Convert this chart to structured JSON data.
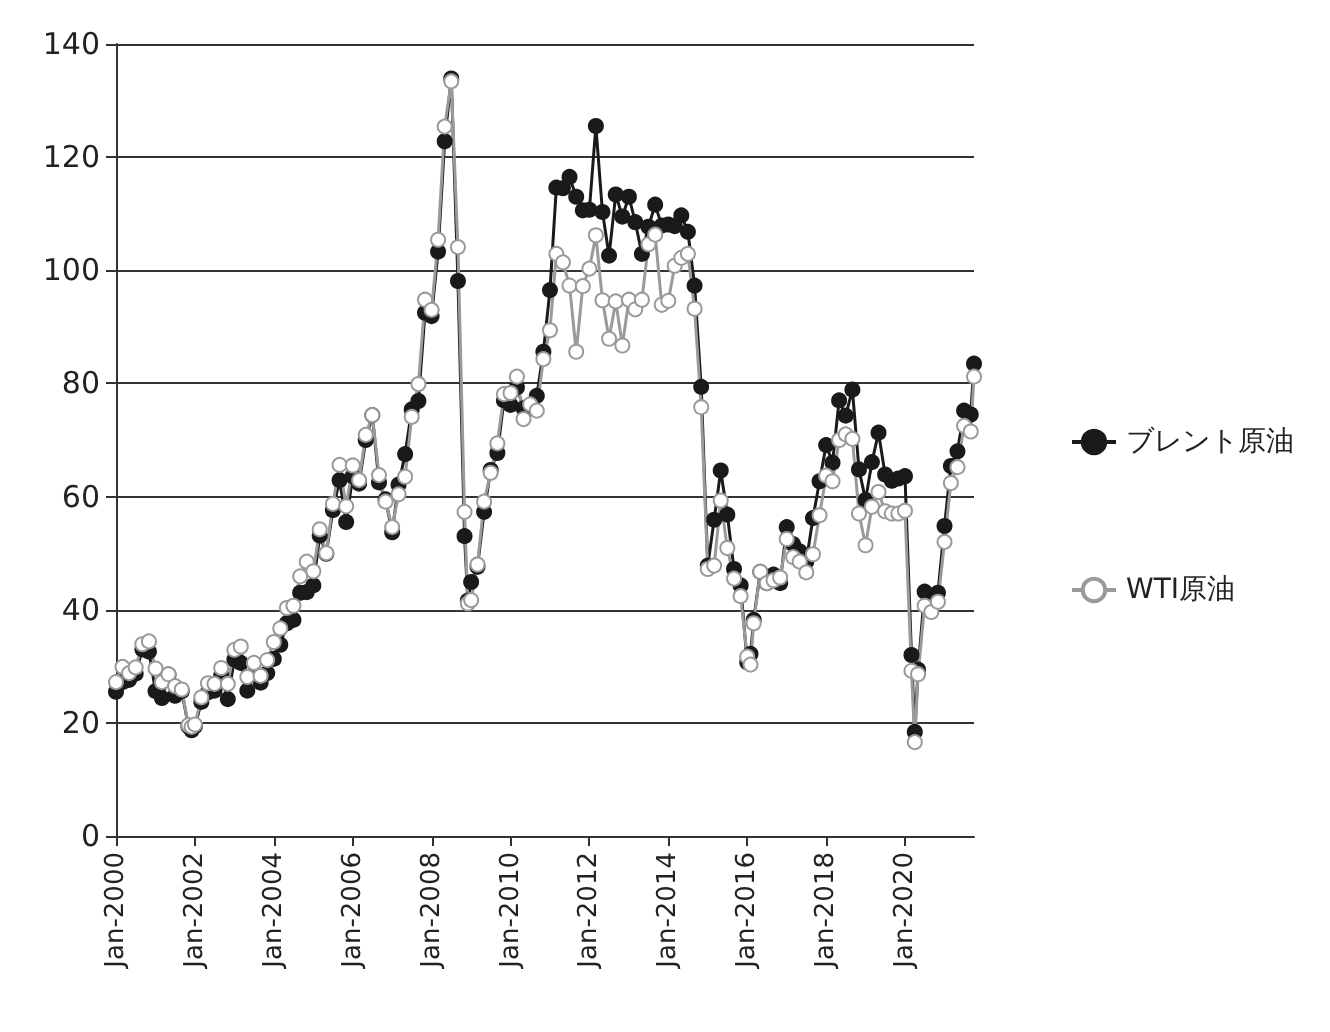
{
  "chart_data": {
    "type": "line",
    "x": [
      "2000-01",
      "2000-03",
      "2000-05",
      "2000-07",
      "2000-09",
      "2000-11",
      "2001-01",
      "2001-03",
      "2001-05",
      "2001-07",
      "2001-09",
      "2001-11",
      "2001-12",
      "2002-01",
      "2002-03",
      "2002-05",
      "2002-07",
      "2002-09",
      "2002-11",
      "2003-01",
      "2003-03",
      "2003-05",
      "2003-07",
      "2003-09",
      "2003-11",
      "2004-01",
      "2004-03",
      "2004-05",
      "2004-07",
      "2004-09",
      "2004-11",
      "2005-01",
      "2005-03",
      "2005-05",
      "2005-07",
      "2005-09",
      "2005-11",
      "2006-01",
      "2006-03",
      "2006-05",
      "2006-07",
      "2006-09",
      "2006-11",
      "2007-01",
      "2007-03",
      "2007-05",
      "2007-07",
      "2007-09",
      "2007-11",
      "2008-01",
      "2008-03",
      "2008-05",
      "2008-07",
      "2008-09",
      "2008-11",
      "2008-12",
      "2009-01",
      "2009-03",
      "2009-05",
      "2009-07",
      "2009-09",
      "2009-11",
      "2010-01",
      "2010-03",
      "2010-05",
      "2010-07",
      "2010-09",
      "2010-11",
      "2011-01",
      "2011-03",
      "2011-05",
      "2011-07",
      "2011-09",
      "2011-11",
      "2012-01",
      "2012-03",
      "2012-05",
      "2012-07",
      "2012-09",
      "2012-11",
      "2013-01",
      "2013-03",
      "2013-05",
      "2013-07",
      "2013-09",
      "2013-11",
      "2014-01",
      "2014-03",
      "2014-05",
      "2014-07",
      "2014-09",
      "2014-11",
      "2015-01",
      "2015-03",
      "2015-05",
      "2015-07",
      "2015-09",
      "2015-11",
      "2016-01",
      "2016-02",
      "2016-03",
      "2016-05",
      "2016-07",
      "2016-09",
      "2016-11",
      "2017-01",
      "2017-03",
      "2017-05",
      "2017-07",
      "2017-09",
      "2017-11",
      "2018-01",
      "2018-03",
      "2018-05",
      "2018-07",
      "2018-09",
      "2018-11",
      "2019-01",
      "2019-03",
      "2019-05",
      "2019-07",
      "2019-09",
      "2019-11",
      "2020-01",
      "2020-03",
      "2020-04",
      "2020-05",
      "2020-07",
      "2020-09",
      "2020-11",
      "2021-01",
      "2021-03",
      "2021-05",
      "2021-07",
      "2021-09",
      "2021-10"
    ],
    "series": [
      {
        "name": "ブレント原油",
        "color": "#1a1a1a",
        "values": [
          25.5,
          27.2,
          27.6,
          28.7,
          33.0,
          32.6,
          25.6,
          24.4,
          28.5,
          24.8,
          25.6,
          19.4,
          18.7,
          19.4,
          23.7,
          25.4,
          25.7,
          28.4,
          24.2,
          31.2,
          30.6,
          25.7,
          28.4,
          27.1,
          28.8,
          31.3,
          33.8,
          37.6,
          38.2,
          43.0,
          43.1,
          44.3,
          53.1,
          49.9,
          57.6,
          62.9,
          55.5,
          63.6,
          62.3,
          70.0,
          74.4,
          62.5,
          59.5,
          53.7,
          62.1,
          67.5,
          75.4,
          76.9,
          92.5,
          91.9,
          103.3,
          122.8,
          133.9,
          98.1,
          53.0,
          41.6,
          44.9,
          47.6,
          57.3,
          64.7,
          67.7,
          77.0,
          76.2,
          79.3,
          75.6,
          75.6,
          77.8,
          85.6,
          96.5,
          114.6,
          114.5,
          116.5,
          113.0,
          110.6,
          110.7,
          125.5,
          110.3,
          102.6,
          113.4,
          109.5,
          113.0,
          108.5,
          102.9,
          107.7,
          111.6,
          107.9,
          108.1,
          107.8,
          109.7,
          106.8,
          97.3,
          79.4,
          47.8,
          55.9,
          64.6,
          56.8,
          47.2,
          44.3,
          30.7,
          32.2,
          38.2,
          46.7,
          44.7,
          46.2,
          44.7,
          54.6,
          51.6,
          50.3,
          48.5,
          56.2,
          62.7,
          69.1,
          66.0,
          77.0,
          74.3,
          78.9,
          64.8,
          59.4,
          66.1,
          71.3,
          63.9,
          62.8,
          63.2,
          63.6,
          32.0,
          18.4,
          29.4,
          43.2,
          41.1,
          43.0,
          54.8,
          65.4,
          68.0,
          75.2,
          74.5,
          83.5
        ]
      },
      {
        "name": "WTI原油",
        "color": "#9a9a9a",
        "values": [
          27.2,
          29.9,
          28.8,
          29.8,
          33.9,
          34.4,
          29.6,
          27.2,
          28.6,
          26.5,
          25.9,
          19.6,
          19.3,
          19.7,
          24.5,
          27.0,
          26.9,
          29.7,
          26.9,
          32.9,
          33.5,
          28.1,
          30.6,
          28.3,
          31.1,
          34.3,
          36.7,
          40.3,
          40.7,
          45.9,
          48.5,
          46.8,
          54.2,
          50.0,
          58.7,
          65.6,
          58.3,
          65.5,
          62.9,
          70.9,
          74.4,
          63.8,
          59.1,
          54.6,
          60.4,
          63.5,
          74.1,
          79.9,
          94.8,
          93.0,
          105.4,
          125.4,
          133.4,
          104.1,
          57.3,
          41.1,
          41.7,
          48.0,
          59.1,
          64.2,
          69.4,
          78.1,
          78.3,
          81.2,
          73.7,
          76.3,
          75.2,
          84.3,
          89.4,
          102.9,
          101.4,
          97.3,
          85.6,
          97.2,
          100.3,
          106.2,
          94.7,
          87.9,
          94.5,
          86.7,
          94.8,
          93.1,
          94.8,
          104.6,
          106.3,
          93.9,
          94.6,
          100.8,
          102.2,
          102.9,
          93.2,
          75.8,
          47.2,
          47.8,
          59.3,
          50.9,
          45.5,
          42.4,
          31.7,
          30.3,
          37.6,
          46.7,
          44.7,
          45.2,
          45.7,
          52.5,
          49.3,
          48.5,
          46.6,
          49.8,
          56.7,
          63.7,
          62.7,
          70.0,
          71.0,
          70.2,
          57.0,
          51.4,
          58.2,
          60.8,
          57.4,
          57.0,
          57.0,
          57.5,
          29.2,
          16.6,
          28.6,
          40.7,
          39.6,
          41.4,
          52.0,
          62.4,
          65.2,
          72.5,
          71.5,
          81.2
        ]
      }
    ],
    "xlim": [
      "2000-01",
      "2021-10"
    ],
    "xticks": [
      {
        "value": "2000-01",
        "label": "Jan-2000"
      },
      {
        "value": "2002-01",
        "label": "Jan-2002"
      },
      {
        "value": "2004-01",
        "label": "Jan-2004"
      },
      {
        "value": "2006-01",
        "label": "Jan-2006"
      },
      {
        "value": "2008-01",
        "label": "Jan-2008"
      },
      {
        "value": "2010-01",
        "label": "Jan-2010"
      },
      {
        "value": "2012-01",
        "label": "Jan-2012"
      },
      {
        "value": "2014-01",
        "label": "Jan-2014"
      },
      {
        "value": "2016-01",
        "label": "Jan-2016"
      },
      {
        "value": "2018-01",
        "label": "Jan-2018"
      },
      {
        "value": "2020-01",
        "label": "Jan-2020"
      }
    ],
    "ylim": [
      0,
      140
    ],
    "yticks": [
      0,
      20,
      40,
      60,
      80,
      100,
      120,
      140
    ],
    "grid": "y",
    "legend": "right",
    "marker": "circle",
    "line_style": "solid"
  }
}
